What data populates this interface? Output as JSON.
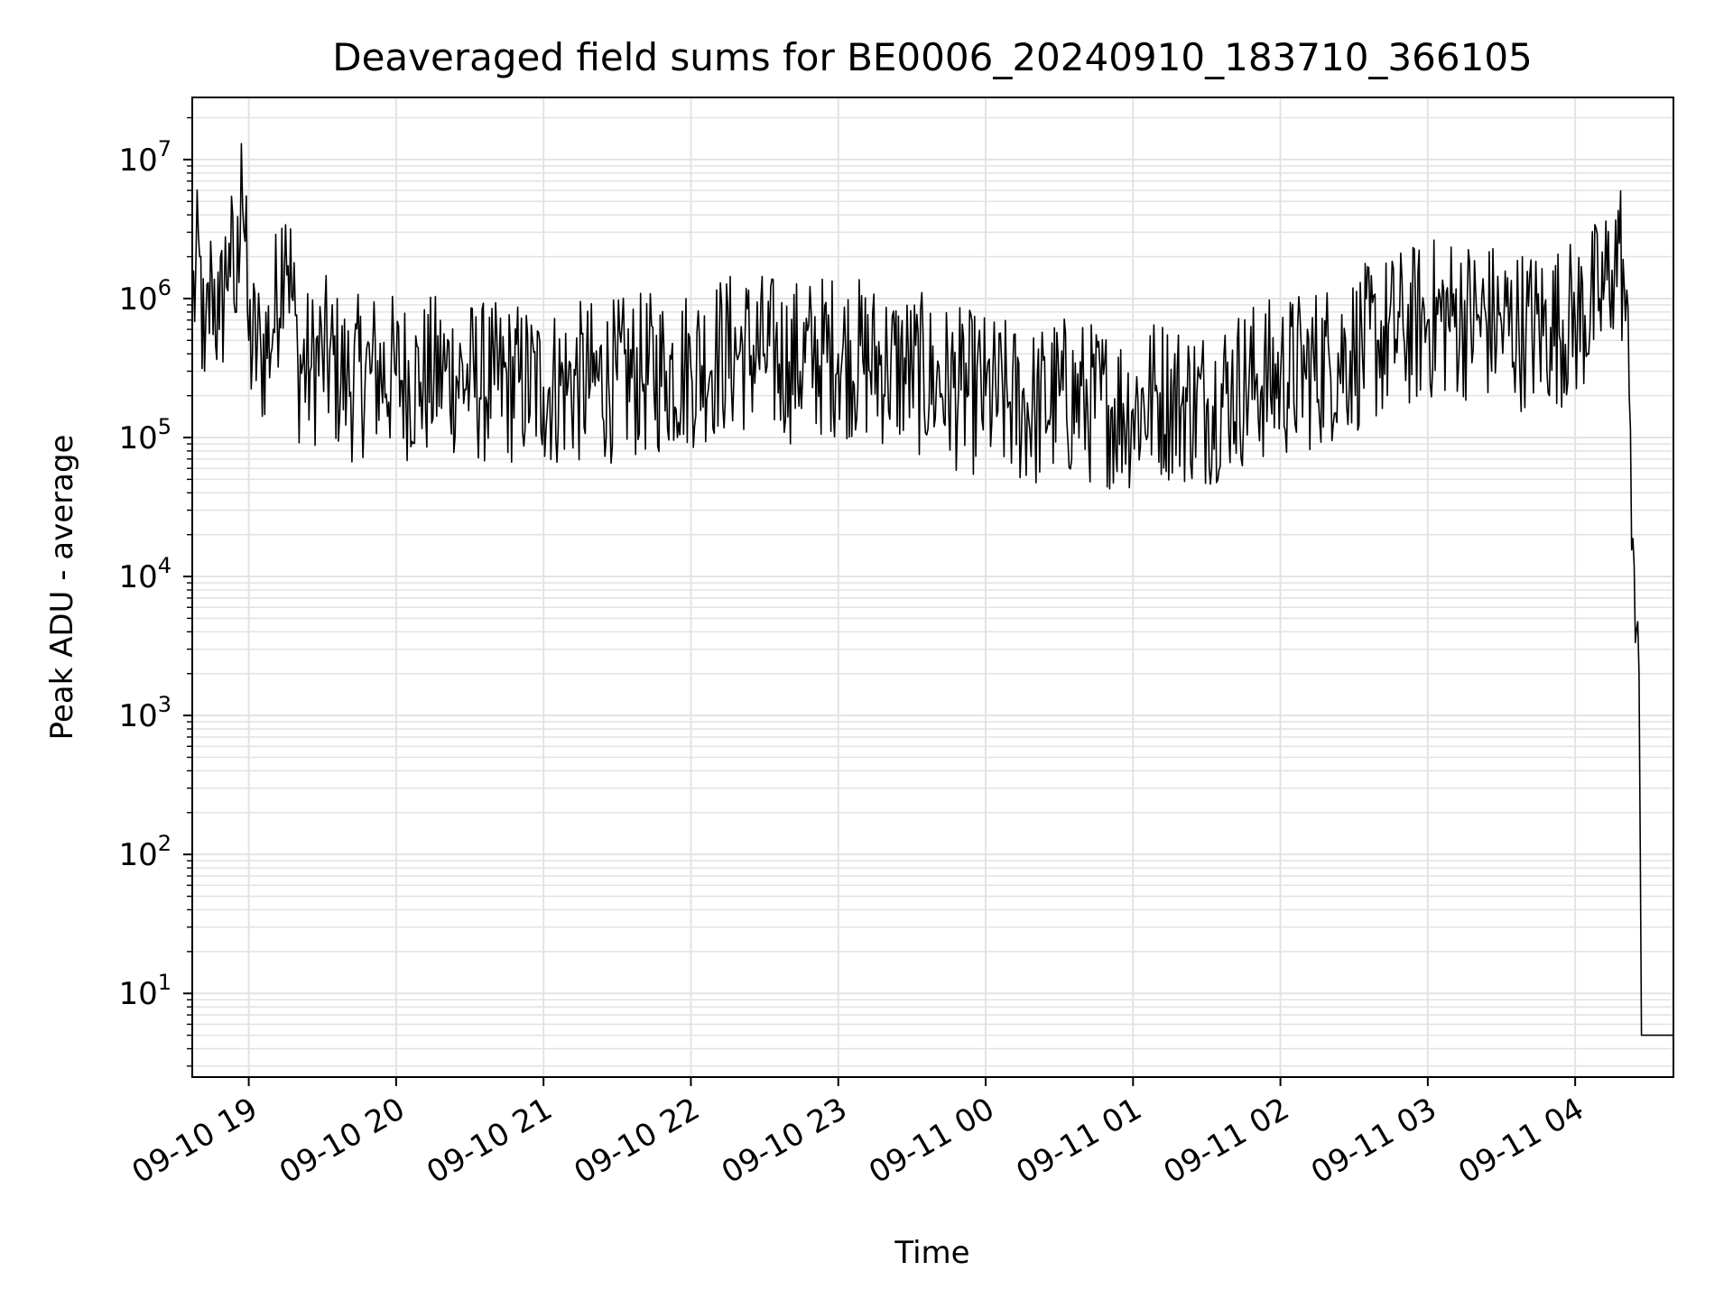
{
  "chart_data": {
    "type": "line",
    "title": "Deaveraged field sums for BE0006_20240910_183710_366105",
    "xlabel": "Time",
    "ylabel": "Peak ADU - average",
    "yscale": "log",
    "grid": true,
    "legend": "none",
    "line_color": "#000000",
    "xlim": [
      "2024-09-10 18:37",
      "2024-09-11 04:40"
    ],
    "ylim": [
      2.5,
      28000000
    ],
    "x_ticks": [
      {
        "value": "2024-09-10 19:00",
        "label": "09-10 19"
      },
      {
        "value": "2024-09-10 20:00",
        "label": "09-10 20"
      },
      {
        "value": "2024-09-10 21:00",
        "label": "09-10 21"
      },
      {
        "value": "2024-09-10 22:00",
        "label": "09-10 22"
      },
      {
        "value": "2024-09-10 23:00",
        "label": "09-10 23"
      },
      {
        "value": "2024-09-11 00:00",
        "label": "09-11 00"
      },
      {
        "value": "2024-09-11 01:00",
        "label": "09-11 01"
      },
      {
        "value": "2024-09-11 02:00",
        "label": "09-11 02"
      },
      {
        "value": "2024-09-11 03:00",
        "label": "09-11 03"
      },
      {
        "value": "2024-09-11 04:00",
        "label": "09-11 04"
      }
    ],
    "y_ticks": [
      {
        "value": 10,
        "base": "10",
        "exp": "1"
      },
      {
        "value": 100,
        "base": "10",
        "exp": "2"
      },
      {
        "value": 1000,
        "base": "10",
        "exp": "3"
      },
      {
        "value": 10000,
        "base": "10",
        "exp": "4"
      },
      {
        "value": 100000,
        "base": "10",
        "exp": "5"
      },
      {
        "value": 1000000,
        "base": "10",
        "exp": "6"
      },
      {
        "value": 10000000,
        "base": "10",
        "exp": "7"
      }
    ],
    "series": [
      {
        "x": [
          "2024-09-10 18:37",
          "2024-09-10 18:40",
          "2024-09-10 18:42",
          "2024-09-10 18:45",
          "2024-09-10 18:48",
          "2024-09-10 18:52",
          "2024-09-10 18:55",
          "2024-09-10 18:57",
          "2024-09-10 19:00",
          "2024-09-10 19:05",
          "2024-09-10 19:10",
          "2024-09-10 19:15",
          "2024-09-10 19:20",
          "2024-09-10 19:25",
          "2024-09-10 19:30",
          "2024-09-10 19:40",
          "2024-09-10 19:50",
          "2024-09-10 20:00",
          "2024-09-10 20:10",
          "2024-09-10 20:20",
          "2024-09-10 20:30",
          "2024-09-10 20:40",
          "2024-09-10 20:50",
          "2024-09-10 21:00",
          "2024-09-10 21:10",
          "2024-09-10 21:20",
          "2024-09-10 21:30",
          "2024-09-10 21:40",
          "2024-09-10 21:50",
          "2024-09-10 22:00",
          "2024-09-10 22:10",
          "2024-09-10 22:20",
          "2024-09-10 22:30",
          "2024-09-10 22:40",
          "2024-09-10 22:50",
          "2024-09-10 23:00",
          "2024-09-10 23:10",
          "2024-09-10 23:20",
          "2024-09-10 23:30",
          "2024-09-10 23:40",
          "2024-09-10 23:50",
          "2024-09-11 00:00",
          "2024-09-11 00:10",
          "2024-09-11 00:20",
          "2024-09-11 00:30",
          "2024-09-11 00:40",
          "2024-09-11 00:50",
          "2024-09-11 01:00",
          "2024-09-11 01:10",
          "2024-09-11 01:20",
          "2024-09-11 01:30",
          "2024-09-11 01:40",
          "2024-09-11 01:50",
          "2024-09-11 02:00",
          "2024-09-11 02:10",
          "2024-09-11 02:20",
          "2024-09-11 02:30",
          "2024-09-11 02:40",
          "2024-09-11 02:50",
          "2024-09-11 03:00",
          "2024-09-11 03:10",
          "2024-09-11 03:20",
          "2024-09-11 03:30",
          "2024-09-11 03:40",
          "2024-09-11 03:50",
          "2024-09-11 04:00",
          "2024-09-11 04:10",
          "2024-09-11 04:15",
          "2024-09-11 04:18",
          "2024-09-11 04:20",
          "2024-09-11 04:22",
          "2024-09-11 04:24",
          "2024-09-11 04:26",
          "2024-09-11 04:27",
          "2024-09-11 04:28",
          "2024-09-11 04:30",
          "2024-09-11 04:40"
        ],
        "y": [
          900000,
          2000000,
          300000,
          1500000,
          600000,
          2500000,
          800000,
          13000000,
          500000,
          400000,
          600000,
          3400000,
          350000,
          300000,
          400000,
          250000,
          300000,
          280000,
          250000,
          300000,
          260000,
          240000,
          250000,
          230000,
          240000,
          250000,
          260000,
          280000,
          300000,
          320000,
          380000,
          420000,
          400000,
          350000,
          380000,
          400000,
          360000,
          330000,
          300000,
          250000,
          220000,
          200000,
          180000,
          160000,
          200000,
          180000,
          170000,
          160000,
          200000,
          180000,
          170000,
          220000,
          250000,
          270000,
          300000,
          350000,
          420000,
          500000,
          600000,
          700000,
          750000,
          700000,
          650000,
          600000,
          620000,
          700000,
          1000000,
          1600000,
          2500000,
          1200000,
          200000,
          12000,
          2000,
          5,
          5,
          5,
          5
        ]
      }
    ]
  }
}
